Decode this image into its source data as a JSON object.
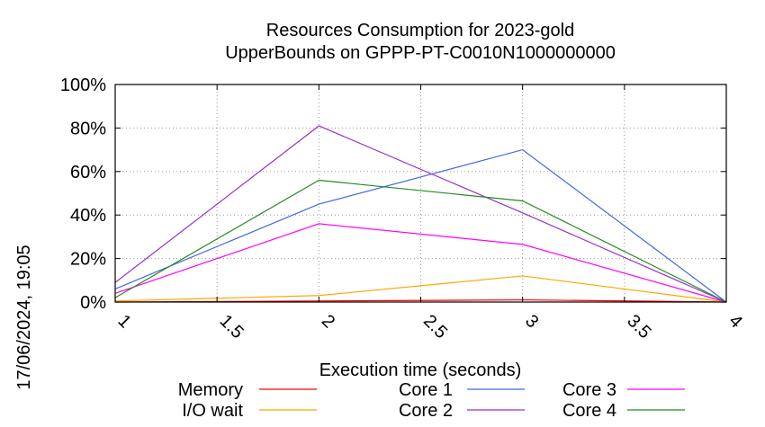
{
  "chart_data": {
    "type": "line",
    "title": "Resources Consumption for 2023-gold",
    "subtitle": "UpperBounds on GPPP-PT-C0010N1000000000",
    "xlabel": "Execution time (seconds)",
    "ylabel": "",
    "timestamp": "17/06/2024, 19:05",
    "xlim": [
      1,
      4
    ],
    "ylim": [
      0,
      100
    ],
    "x_ticks": [
      "1",
      "1.5",
      "2",
      "2.5",
      "3",
      "3.5",
      "4"
    ],
    "y_ticks": [
      "0%",
      "20%",
      "40%",
      "60%",
      "80%",
      "100%"
    ],
    "grid": true,
    "legend_position": "bottom",
    "x": [
      1,
      2,
      3,
      4
    ],
    "series": [
      {
        "name": "Memory",
        "color": "#ff0000",
        "values": [
          0,
          0.5,
          1,
          0
        ]
      },
      {
        "name": "I/O wait",
        "color": "#ffa500",
        "values": [
          0.5,
          3,
          12,
          0
        ]
      },
      {
        "name": "Core 1",
        "color": "#4169e1",
        "values": [
          6,
          45,
          70,
          0
        ]
      },
      {
        "name": "Core 2",
        "color": "#9932cc",
        "values": [
          9,
          81,
          41,
          0
        ]
      },
      {
        "name": "Core 3",
        "color": "#ff00ff",
        "values": [
          4,
          36,
          26.5,
          0
        ]
      },
      {
        "name": "Core 4",
        "color": "#228b22",
        "values": [
          2,
          56,
          46.5,
          0
        ]
      }
    ]
  }
}
